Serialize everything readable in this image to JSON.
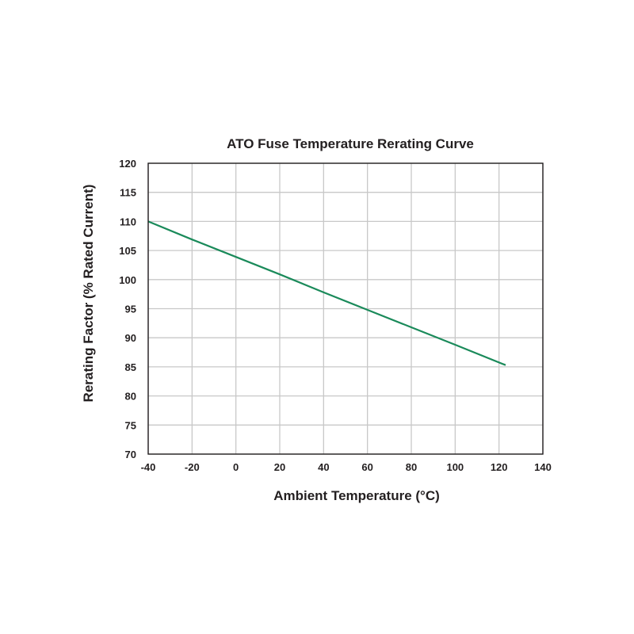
{
  "chart_data": {
    "type": "line",
    "title": "ATO Fuse Temperature Rerating Curve",
    "xlabel": "Ambient Temperature (°C)",
    "ylabel": "Rerating Factor (% Rated Current)",
    "xlim": [
      -40,
      140
    ],
    "ylim": [
      70,
      120
    ],
    "x_ticks": [
      "-40",
      "-20",
      "0",
      "20",
      "40",
      "60",
      "80",
      "100",
      "120",
      "140"
    ],
    "y_ticks": [
      "70",
      "75",
      "80",
      "85",
      "90",
      "95",
      "100",
      "105",
      "110",
      "115",
      "120"
    ],
    "grid": true,
    "series": [
      {
        "color": "#1a8a5a",
        "x": [
          -40,
          -20,
          0,
          20,
          40,
          60,
          80,
          100,
          123
        ],
        "y": [
          110.0,
          106.9,
          103.9,
          100.9,
          97.8,
          94.8,
          91.8,
          88.8,
          85.3
        ]
      }
    ]
  }
}
